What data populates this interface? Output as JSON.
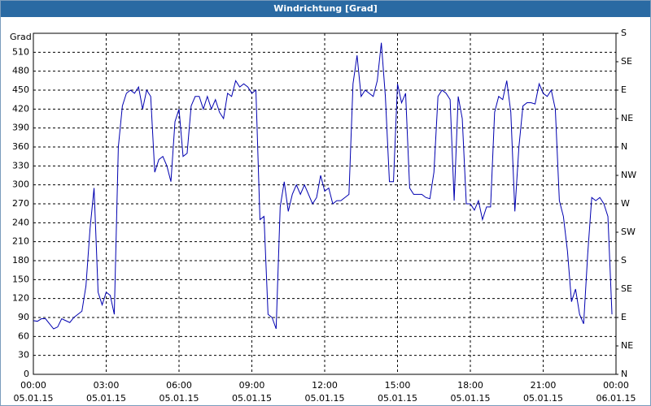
{
  "chart_data": {
    "type": "line",
    "title": "Windrichtung [Grad]",
    "y_label": "Grad",
    "x": [
      0,
      10,
      20,
      30,
      40,
      50,
      60,
      70,
      80,
      90,
      100,
      110,
      120,
      130,
      140,
      150,
      160,
      170,
      180,
      190,
      200,
      210,
      220,
      230,
      240,
      250,
      260,
      270,
      280,
      290,
      300,
      310,
      320,
      330,
      340,
      350,
      360,
      370,
      380,
      390,
      400,
      410,
      420,
      430,
      440,
      450,
      460,
      470,
      480,
      490,
      500,
      510,
      520,
      530,
      540,
      550,
      560,
      570,
      580,
      590,
      600,
      610,
      620,
      630,
      640,
      650,
      660,
      670,
      680,
      690,
      700,
      710,
      720,
      730,
      740,
      750,
      760,
      770,
      780,
      790,
      800,
      810,
      820,
      830,
      840,
      850,
      860,
      870,
      880,
      890,
      900,
      910,
      920,
      930,
      940,
      950,
      960,
      970,
      980,
      990,
      1000,
      1010,
      1020,
      1030,
      1040,
      1050,
      1060,
      1070,
      1080,
      1090,
      1100,
      1110,
      1120,
      1130,
      1140,
      1150,
      1160,
      1170,
      1180,
      1190,
      1200,
      1210,
      1220,
      1230,
      1240,
      1250,
      1260,
      1270,
      1280,
      1290,
      1300,
      1310,
      1320,
      1330,
      1340,
      1350,
      1360,
      1370,
      1380,
      1390,
      1400,
      1410,
      1420,
      1430
    ],
    "series": [
      {
        "name": "Windrichtung",
        "color": "#0000b0",
        "values": [
          85,
          84,
          88,
          88,
          80,
          72,
          75,
          88,
          85,
          82,
          90,
          95,
          100,
          140,
          230,
          295,
          130,
          110,
          130,
          125,
          95,
          360,
          425,
          445,
          450,
          445,
          455,
          420,
          450,
          440,
          320,
          340,
          345,
          330,
          305,
          400,
          420,
          345,
          350,
          425,
          440,
          440,
          420,
          440,
          420,
          435,
          415,
          405,
          445,
          440,
          465,
          455,
          460,
          455,
          445,
          450,
          245,
          250,
          95,
          90,
          72,
          265,
          305,
          258,
          285,
          300,
          285,
          300,
          285,
          270,
          280,
          315,
          290,
          295,
          270,
          275,
          275,
          280,
          285,
          460,
          505,
          440,
          450,
          445,
          440,
          465,
          525,
          440,
          305,
          305,
          460,
          430,
          445,
          295,
          285,
          285,
          285,
          280,
          278,
          320,
          440,
          450,
          445,
          435,
          275,
          440,
          405,
          270,
          270,
          260,
          275,
          245,
          265,
          265,
          415,
          440,
          435,
          465,
          415,
          258,
          360,
          425,
          430,
          430,
          428,
          460,
          445,
          440,
          450,
          420,
          275,
          250,
          195,
          115,
          135,
          95,
          80,
          190,
          280,
          275,
          280,
          270,
          250,
          95
        ]
      }
    ],
    "xlim": [
      0,
      1440
    ],
    "xticks": [
      {
        "value": 0,
        "label": "00:00",
        "date": "05.01.15"
      },
      {
        "value": 180,
        "label": "03:00",
        "date": "05.01.15"
      },
      {
        "value": 360,
        "label": "06:00",
        "date": "05.01.15"
      },
      {
        "value": 540,
        "label": "09:00",
        "date": "05.01.15"
      },
      {
        "value": 720,
        "label": "12:00",
        "date": "05.01.15"
      },
      {
        "value": 900,
        "label": "15:00",
        "date": "05.01.15"
      },
      {
        "value": 1080,
        "label": "18:00",
        "date": "05.01.15"
      },
      {
        "value": 1260,
        "label": "21:00",
        "date": "05.01.15"
      },
      {
        "value": 1440,
        "label": "00:00",
        "date": "06.01.15"
      }
    ],
    "ylim": [
      0,
      540
    ],
    "yticks": [
      0,
      30,
      60,
      90,
      120,
      150,
      180,
      210,
      240,
      270,
      300,
      330,
      360,
      390,
      420,
      450,
      480,
      510
    ],
    "y2lim": [
      0,
      540
    ],
    "y2ticks": [
      {
        "value": 0,
        "label": "N"
      },
      {
        "value": 45,
        "label": "NE"
      },
      {
        "value": 90,
        "label": "E"
      },
      {
        "value": 135,
        "label": "SE"
      },
      {
        "value": 180,
        "label": "S"
      },
      {
        "value": 225,
        "label": "SW"
      },
      {
        "value": 270,
        "label": "W"
      },
      {
        "value": 315,
        "label": "NW"
      },
      {
        "value": 360,
        "label": "N"
      },
      {
        "value": 405,
        "label": "NE"
      },
      {
        "value": 450,
        "label": "E"
      },
      {
        "value": 495,
        "label": "SE"
      },
      {
        "value": 540,
        "label": "S"
      }
    ],
    "grid": true
  }
}
